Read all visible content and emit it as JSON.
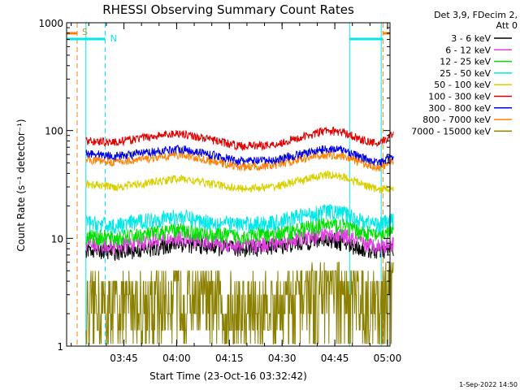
{
  "chart_data": {
    "type": "line",
    "title": "RHESSI Observing Summary Count Rates",
    "xlabel": "Start Time (23-Oct-16 03:32:42)",
    "ylabel": "Count Rate (s⁻¹ detector⁻¹)",
    "yscale": "log",
    "ylim": [
      1,
      1000
    ],
    "xlim_minutes_after_start": [
      -4.0,
      88.0
    ],
    "y_ticks": [
      {
        "value": 1,
        "label": "1"
      },
      {
        "value": 10,
        "label": "10"
      },
      {
        "value": 100,
        "label": "100"
      },
      {
        "value": 1000,
        "label": "1000"
      }
    ],
    "x_ticks": [
      {
        "t": 12.3,
        "label": "03:45"
      },
      {
        "t": 27.3,
        "label": "04:00"
      },
      {
        "t": 42.3,
        "label": "04:15"
      },
      {
        "t": 57.3,
        "label": "04:30"
      },
      {
        "t": 72.3,
        "label": "04:45"
      },
      {
        "t": 87.3,
        "label": "05:00"
      }
    ],
    "legend_header": [
      "Det 3,9, FDecim 2,",
      "Att 0"
    ],
    "legend_position": "right",
    "series": [
      {
        "name": "3 - 6 keV",
        "color": "#000000",
        "t": [
          1.5,
          10,
          20,
          28,
          35,
          45,
          55,
          62,
          70,
          75,
          80,
          85,
          89
        ],
        "values": [
          8,
          7.5,
          8,
          9,
          8.5,
          8,
          8.5,
          9,
          10,
          9,
          8,
          7.5,
          8
        ]
      },
      {
        "name": "6 - 12 keV",
        "color": "#e040e0",
        "t": [
          1.5,
          10,
          20,
          28,
          35,
          45,
          55,
          62,
          70,
          75,
          80,
          85,
          89
        ],
        "values": [
          9,
          8.5,
          9.5,
          10,
          9.5,
          8.5,
          9,
          10,
          11,
          10.5,
          9,
          8.5,
          9
        ]
      },
      {
        "name": "12 - 25 keV",
        "color": "#00e000",
        "t": [
          1.5,
          10,
          20,
          28,
          35,
          45,
          55,
          62,
          70,
          75,
          80,
          85,
          89
        ],
        "values": [
          10.5,
          10,
          11,
          12,
          11,
          10.5,
          11,
          12,
          13.5,
          13,
          11.5,
          10.5,
          12
        ]
      },
      {
        "name": "25 - 50 keV",
        "color": "#00e8e8",
        "t": [
          1.5,
          10,
          20,
          28,
          35,
          45,
          55,
          62,
          70,
          75,
          80,
          85,
          89
        ],
        "values": [
          14,
          13,
          15,
          16,
          14.5,
          13.5,
          14,
          16,
          18,
          17,
          14.5,
          13.5,
          15
        ]
      },
      {
        "name": "50 - 100 keV",
        "color": "#d8d000",
        "t": [
          1.5,
          10,
          20,
          28,
          35,
          45,
          55,
          62,
          70,
          75,
          80,
          85,
          89
        ],
        "values": [
          32,
          30,
          33,
          36,
          33,
          29,
          30,
          34,
          39,
          37,
          32,
          28,
          30
        ]
      },
      {
        "name": "100 - 300 keV",
        "color": "#e00000",
        "t": [
          1.5,
          10,
          20,
          28,
          35,
          45,
          55,
          62,
          70,
          75,
          80,
          85,
          89
        ],
        "values": [
          80,
          78,
          88,
          95,
          85,
          72,
          74,
          85,
          100,
          96,
          82,
          74,
          95
        ]
      },
      {
        "name": "300 - 800 keV",
        "color": "#0000e0",
        "t": [
          1.5,
          10,
          20,
          28,
          35,
          45,
          55,
          62,
          70,
          75,
          80,
          85,
          89
        ],
        "values": [
          62,
          58,
          63,
          68,
          62,
          52,
          53,
          60,
          68,
          66,
          56,
          50,
          58
        ]
      },
      {
        "name": "800 - 7000 keV",
        "color": "#ff8000",
        "t": [
          1.5,
          10,
          20,
          28,
          35,
          45,
          55,
          62,
          70,
          75,
          80,
          85,
          89
        ],
        "values": [
          54,
          51,
          55,
          60,
          54,
          46,
          47,
          54,
          60,
          58,
          50,
          45,
          52
        ]
      },
      {
        "name": "7000 - 15000 keV",
        "color": "#8b8000",
        "t": [
          1.5,
          10,
          20,
          28,
          35,
          45,
          55,
          62,
          70,
          75,
          80,
          85,
          89
        ],
        "values": [
          2,
          1.8,
          2.2,
          2.5,
          2.2,
          1.8,
          1.9,
          2.6,
          3.5,
          3.2,
          2.5,
          2,
          5
        ]
      }
    ],
    "markers": [
      {
        "label": "S",
        "color": "#ff8000",
        "style": "dashed",
        "t": [
          -1.0,
          86.0
        ]
      },
      {
        "label": "N",
        "color": "#00e8e8",
        "style": "dashed",
        "t": [
          7.0,
          92.0
        ]
      },
      {
        "label": "",
        "color": "#00e8e8",
        "style": "solid",
        "t": [
          1.5,
          85.5
        ]
      }
    ],
    "attenuator_bar_color": "#ff8000",
    "night_bar_color": "#00e8e8"
  },
  "footer_date": "1-Sep-2022 14:50"
}
